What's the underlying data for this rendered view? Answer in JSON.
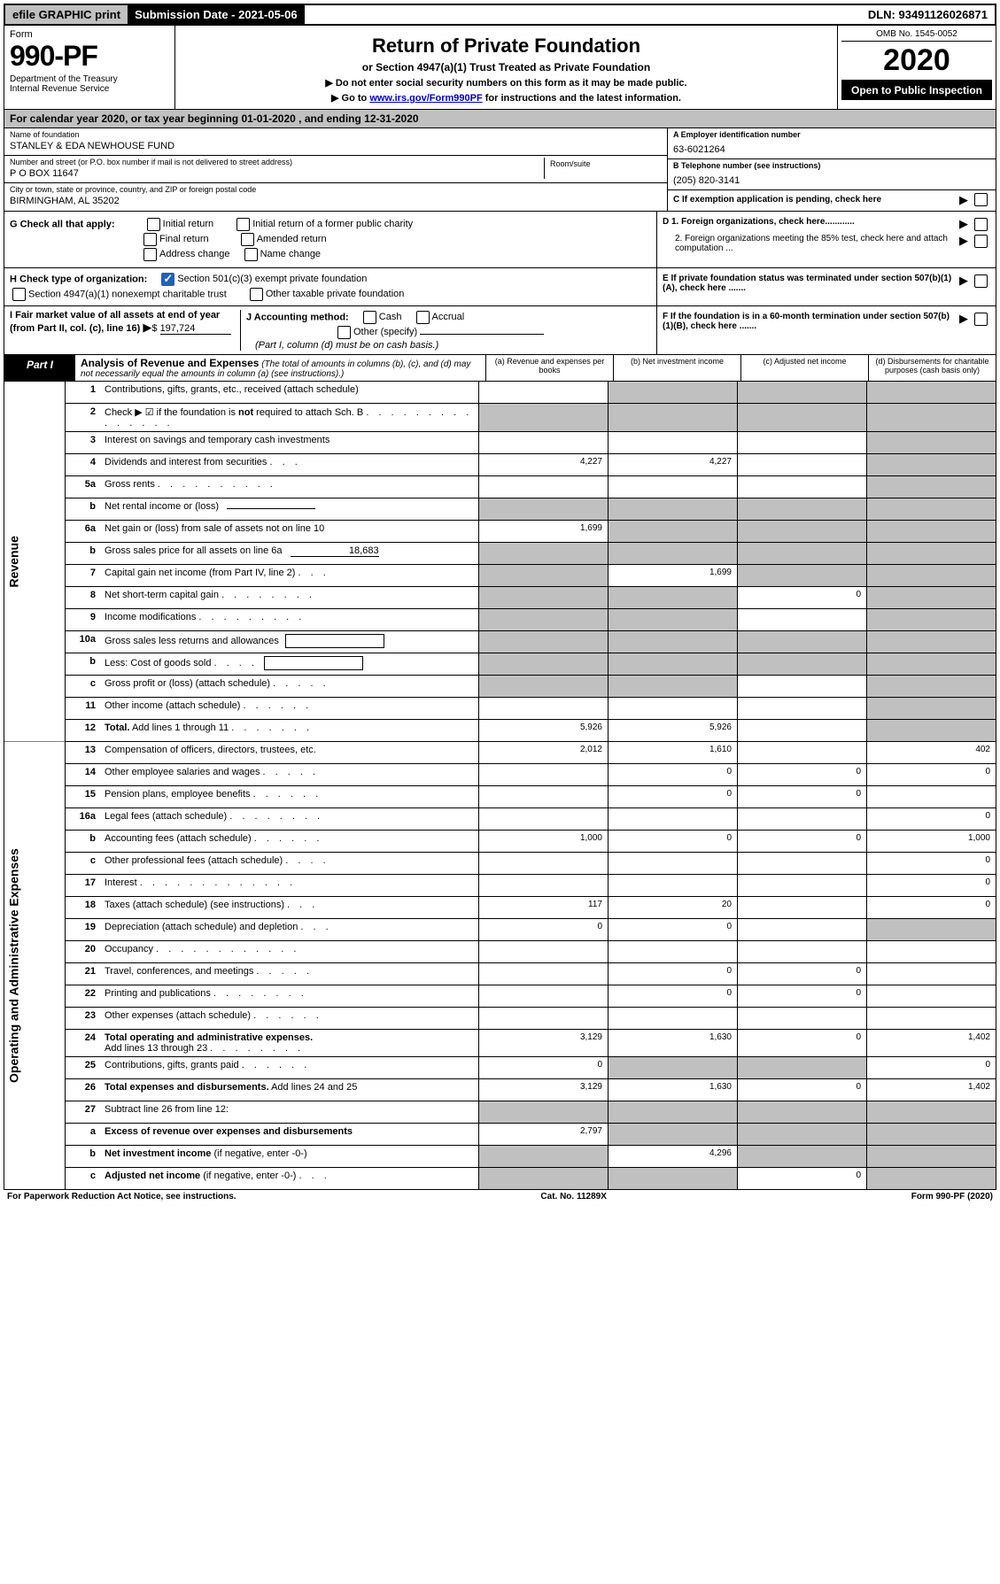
{
  "topbar": {
    "efile": "efile GRAPHIC print",
    "submission": "Submission Date - 2021-05-06",
    "dln": "DLN: 93491126026871"
  },
  "header": {
    "form_word": "Form",
    "form_no": "990-PF",
    "dept": "Department of the Treasury\nInternal Revenue Service",
    "title": "Return of Private Foundation",
    "subtitle": "or Section 4947(a)(1) Trust Treated as Private Foundation",
    "instr1": "▶ Do not enter social security numbers on this form as it may be made public.",
    "instr2_pre": "▶ Go to ",
    "instr2_link": "www.irs.gov/Form990PF",
    "instr2_post": " for instructions and the latest information.",
    "omb": "OMB No. 1545-0052",
    "year": "2020",
    "open": "Open to Public Inspection"
  },
  "calendar": "For calendar year 2020, or tax year beginning 01-01-2020                         , and ending 12-31-2020",
  "foundation": {
    "name_label": "Name of foundation",
    "name": "STANLEY & EDA NEWHOUSE FUND",
    "addr_label": "Number and street (or P.O. box number if mail is not delivered to street address)",
    "addr": "P O BOX 11647",
    "room_label": "Room/suite",
    "city_label": "City or town, state or province, country, and ZIP or foreign postal code",
    "city": "BIRMINGHAM, AL  35202",
    "ein_label": "A Employer identification number",
    "ein": "63-6021264",
    "phone_label": "B Telephone number (see instructions)",
    "phone": "(205) 820-3141",
    "c_label": "C If exemption application is pending, check here"
  },
  "section_g": {
    "label": "G Check all that apply:",
    "opts": [
      "Initial return",
      "Initial return of a former public charity",
      "Final return",
      "Amended return",
      "Address change",
      "Name change"
    ]
  },
  "section_d": {
    "d1": "D 1. Foreign organizations, check here............",
    "d2": "2. Foreign organizations meeting the 85% test, check here and attach computation ..."
  },
  "section_e": "E  If private foundation status was terminated under section 507(b)(1)(A), check here .......",
  "section_f": "F  If the foundation is in a 60-month termination under section 507(b)(1)(B), check here .......",
  "section_h": {
    "label": "H Check type of organization:",
    "opt1": "Section 501(c)(3) exempt private foundation",
    "opt2": "Section 4947(a)(1) nonexempt charitable trust",
    "opt3": "Other taxable private foundation"
  },
  "section_i": {
    "label": "I Fair market value of all assets at end of year (from Part II, col. (c), line 16)",
    "value": "197,724"
  },
  "section_j": {
    "label": "J Accounting method:",
    "cash": "Cash",
    "accrual": "Accrual",
    "other": "Other (specify)",
    "note": "(Part I, column (d) must be on cash basis.)"
  },
  "part1": {
    "label": "Part I",
    "title": "Analysis of Revenue and Expenses",
    "note": "(The total of amounts in columns (b), (c), and (d) may not necessarily equal the amounts in column (a) (see instructions).)",
    "col_a": "(a)   Revenue and expenses per books",
    "col_b": "(b)  Net investment income",
    "col_c": "(c)  Adjusted net income",
    "col_d": "(d)  Disbursements for charitable purposes (cash basis only)"
  },
  "side_labels": {
    "revenue": "Revenue",
    "expenses": "Operating and Administrative Expenses"
  },
  "rows": [
    {
      "n": "1",
      "d": "Contributions, gifts, grants, etc., received (attach schedule)",
      "a": "",
      "b": "grey",
      "c": "grey",
      "dd": "grey"
    },
    {
      "n": "2",
      "d": "Check ▶ ☑ if the foundation is <b>not</b> required to attach Sch. B   <span class='dots'>. . . . . . . . . . . . . . .</span>",
      "a": "grey",
      "b": "grey",
      "c": "grey",
      "dd": "grey"
    },
    {
      "n": "3",
      "d": "Interest on savings and temporary cash investments",
      "a": "",
      "b": "",
      "c": "",
      "dd": "grey"
    },
    {
      "n": "4",
      "d": "Dividends and interest from securities   <span class='dots'>. . .</span>",
      "a": "4,227",
      "b": "4,227",
      "c": "",
      "dd": "grey"
    },
    {
      "n": "5a",
      "d": "Gross rents   <span class='dots'>. . . . . . . . . .</span>",
      "a": "",
      "b": "",
      "c": "",
      "dd": "grey"
    },
    {
      "n": "b",
      "d": "Net rental income or (loss)   <span class='inline-input'></span>",
      "a": "grey",
      "b": "grey",
      "c": "grey",
      "dd": "grey"
    },
    {
      "n": "6a",
      "d": "Net gain or (loss) from sale of assets not on line 10",
      "a": "1,699",
      "b": "grey",
      "c": "grey",
      "dd": "grey"
    },
    {
      "n": "b",
      "d": "Gross sales price for all assets on line 6a <span class='inline-input' style='text-align:right'>18,683</span>",
      "a": "grey",
      "b": "grey",
      "c": "grey",
      "dd": "grey"
    },
    {
      "n": "7",
      "d": "Capital gain net income (from Part IV, line 2)   <span class='dots'>. . .</span>",
      "a": "grey",
      "b": "1,699",
      "c": "grey",
      "dd": "grey"
    },
    {
      "n": "8",
      "d": "Net short-term capital gain   <span class='dots'>. . . . . . . .</span>",
      "a": "grey",
      "b": "grey",
      "c": "0",
      "dd": "grey"
    },
    {
      "n": "9",
      "d": "Income modifications   <span class='dots'>. . . . . . . . .</span>",
      "a": "grey",
      "b": "grey",
      "c": "",
      "dd": "grey"
    },
    {
      "n": "10a",
      "d": "Gross sales less returns and allowances <span class='mini-box'></span>",
      "a": "grey",
      "b": "grey",
      "c": "grey",
      "dd": "grey"
    },
    {
      "n": "b",
      "d": "Less: Cost of goods sold   <span class='dots'>. . . .</span> <span class='mini-box'></span>",
      "a": "grey",
      "b": "grey",
      "c": "grey",
      "dd": "grey"
    },
    {
      "n": "c",
      "d": "Gross profit or (loss) (attach schedule)   <span class='dots'>. . . . .</span>",
      "a": "grey",
      "b": "grey",
      "c": "",
      "dd": "grey"
    },
    {
      "n": "11",
      "d": "Other income (attach schedule)   <span class='dots'>. . . . . .</span>",
      "a": "",
      "b": "",
      "c": "",
      "dd": "grey"
    },
    {
      "n": "12",
      "d": "<b>Total.</b> Add lines 1 through 11   <span class='dots'>. . . . . . .</span>",
      "a": "5,926",
      "b": "5,926",
      "c": "",
      "dd": "grey"
    },
    {
      "n": "13",
      "d": "Compensation of officers, directors, trustees, etc.",
      "a": "2,012",
      "b": "1,610",
      "c": "",
      "dd": "402"
    },
    {
      "n": "14",
      "d": "Other employee salaries and wages   <span class='dots'>. . . . .</span>",
      "a": "",
      "b": "0",
      "c": "0",
      "dd": "0"
    },
    {
      "n": "15",
      "d": "Pension plans, employee benefits   <span class='dots'>. . . . . .</span>",
      "a": "",
      "b": "0",
      "c": "0",
      "dd": ""
    },
    {
      "n": "16a",
      "d": "Legal fees (attach schedule)   <span class='dots'>. . . . . . . .</span>",
      "a": "",
      "b": "",
      "c": "",
      "dd": "0"
    },
    {
      "n": "b",
      "d": "Accounting fees (attach schedule)   <span class='dots'>. . . . . .</span>",
      "a": "1,000",
      "b": "0",
      "c": "0",
      "dd": "1,000"
    },
    {
      "n": "c",
      "d": "Other professional fees (attach schedule)   <span class='dots'>. . . .</span>",
      "a": "",
      "b": "",
      "c": "",
      "dd": "0"
    },
    {
      "n": "17",
      "d": "Interest   <span class='dots'>. . . . . . . . . . . . .</span>",
      "a": "",
      "b": "",
      "c": "",
      "dd": "0"
    },
    {
      "n": "18",
      "d": "Taxes (attach schedule) (see instructions)   <span class='dots'>. . .</span>",
      "a": "117",
      "b": "20",
      "c": "",
      "dd": "0"
    },
    {
      "n": "19",
      "d": "Depreciation (attach schedule) and depletion   <span class='dots'>. . .</span>",
      "a": "0",
      "b": "0",
      "c": "",
      "dd": "grey"
    },
    {
      "n": "20",
      "d": "Occupancy   <span class='dots'>. . . . . . . . . . . .</span>",
      "a": "",
      "b": "",
      "c": "",
      "dd": ""
    },
    {
      "n": "21",
      "d": "Travel, conferences, and meetings   <span class='dots'>. . . . .</span>",
      "a": "",
      "b": "0",
      "c": "0",
      "dd": ""
    },
    {
      "n": "22",
      "d": "Printing and publications   <span class='dots'>. . . . . . . .</span>",
      "a": "",
      "b": "0",
      "c": "0",
      "dd": ""
    },
    {
      "n": "23",
      "d": "Other expenses (attach schedule)   <span class='dots'>. . . . . .</span>",
      "a": "",
      "b": "",
      "c": "",
      "dd": ""
    },
    {
      "n": "24",
      "d": "<b>Total operating and administrative expenses.</b><br>Add lines 13 through 23   <span class='dots'>. . . . . . . .</span>",
      "a": "3,129",
      "b": "1,630",
      "c": "0",
      "dd": "1,402"
    },
    {
      "n": "25",
      "d": "Contributions, gifts, grants paid   <span class='dots'>. . . . . .</span>",
      "a": "0",
      "b": "grey",
      "c": "grey",
      "dd": "0"
    },
    {
      "n": "26",
      "d": "<b>Total expenses and disbursements.</b> Add lines 24 and 25",
      "a": "3,129",
      "b": "1,630",
      "c": "0",
      "dd": "1,402"
    },
    {
      "n": "27",
      "d": "Subtract line 26 from line 12:",
      "a": "grey",
      "b": "grey",
      "c": "grey",
      "dd": "grey"
    },
    {
      "n": "a",
      "d": "<b>Excess of revenue over expenses and disbursements</b>",
      "a": "2,797",
      "b": "grey",
      "c": "grey",
      "dd": "grey"
    },
    {
      "n": "b",
      "d": "<b>Net investment income</b> (if negative, enter -0-)",
      "a": "grey",
      "b": "4,296",
      "c": "grey",
      "dd": "grey"
    },
    {
      "n": "c",
      "d": "<b>Adjusted net income</b> (if negative, enter -0-)   <span class='dots'>. . .</span>",
      "a": "grey",
      "b": "grey",
      "c": "0",
      "dd": "grey"
    }
  ],
  "footer": {
    "left": "For Paperwork Reduction Act Notice, see instructions.",
    "mid": "Cat. No. 11289X",
    "right": "Form 990-PF (2020)"
  }
}
